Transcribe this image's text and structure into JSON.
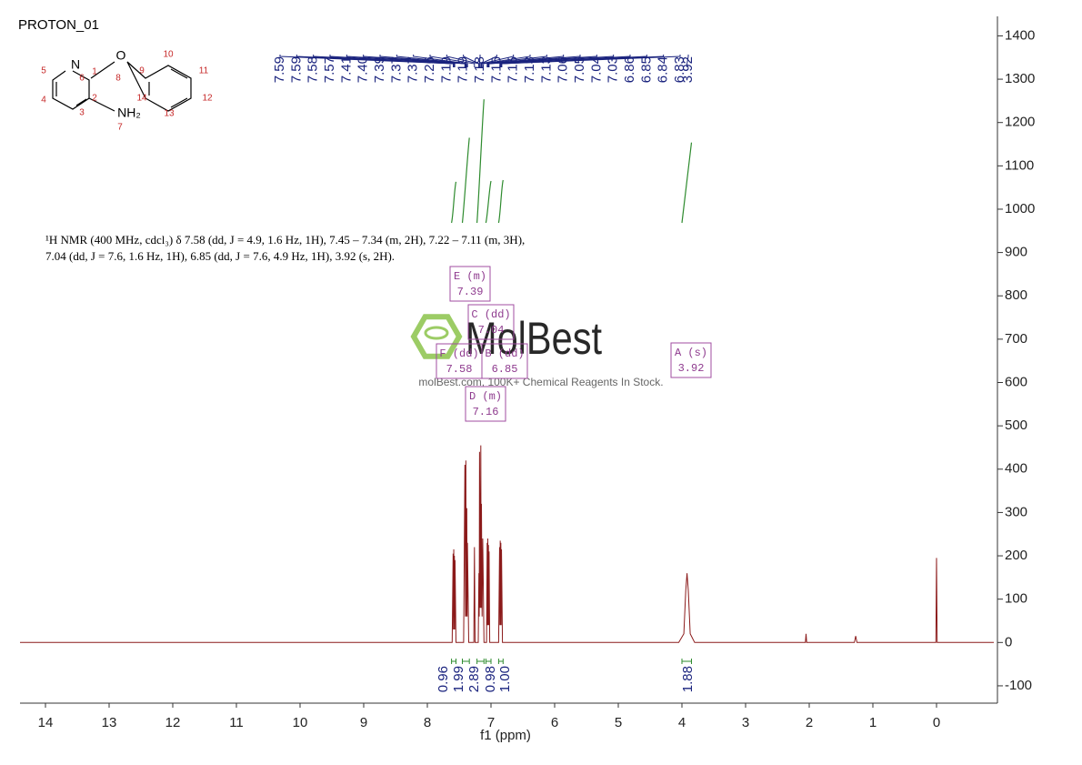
{
  "chart_data": {
    "type": "nmr",
    "title": "PROTON_01",
    "x_label": "f1 (ppm)",
    "xlim": [
      14.4,
      -0.9
    ],
    "xticks": [
      14,
      13,
      12,
      11,
      10,
      9,
      8,
      7,
      6,
      5,
      4,
      3,
      2,
      1,
      0
    ],
    "ylim": [
      -140,
      1445
    ],
    "yticks": [
      -100,
      0,
      100,
      200,
      300,
      400,
      500,
      600,
      700,
      800,
      900,
      1000,
      1100,
      1200,
      1300,
      1400
    ],
    "color": "#8b1a1a",
    "x": [
      14.4,
      7.61,
      7.595,
      7.59,
      7.585,
      7.58,
      7.575,
      7.57,
      7.565,
      7.55,
      7.43,
      7.41,
      7.4,
      7.395,
      7.39,
      7.38,
      7.375,
      7.37,
      7.35,
      7.27,
      7.26,
      7.25,
      7.2,
      7.19,
      7.185,
      7.18,
      7.17,
      7.16,
      7.155,
      7.15,
      7.14,
      7.13,
      7.11,
      7.07,
      7.06,
      7.055,
      7.05,
      7.045,
      7.04,
      7.035,
      7.03,
      7.02,
      6.88,
      6.865,
      6.86,
      6.855,
      6.85,
      6.845,
      6.84,
      6.835,
      6.82,
      4.05,
      3.97,
      3.94,
      3.92,
      3.9,
      3.87,
      3.8,
      2.06,
      2.05,
      2.04,
      1.29,
      1.27,
      1.25,
      0.01,
      0,
      -0.01,
      -0.9
    ],
    "values": [
      0,
      0,
      205,
      30,
      215,
      30,
      200,
      30,
      190,
      0,
      0,
      410,
      60,
      420,
      60,
      310,
      60,
      230,
      0,
      0,
      220,
      0,
      0,
      160,
      60,
      440,
      80,
      455,
      80,
      320,
      60,
      240,
      0,
      0,
      230,
      40,
      240,
      40,
      225,
      40,
      210,
      0,
      0,
      220,
      40,
      235,
      40,
      230,
      40,
      215,
      0,
      0,
      20,
      120,
      160,
      120,
      20,
      0,
      0,
      20,
      0,
      0,
      15,
      0,
      0,
      195,
      0,
      0
    ],
    "peak_label_color": "#1a237e",
    "peak_labels": [
      7.59,
      7.59,
      7.58,
      7.57,
      7.41,
      {
        "value": 7.4,
        "label": "7.40"
      },
      7.39,
      7.37,
      7.37,
      7.26,
      7.19,
      7.19,
      7.18,
      7.16,
      7.15,
      7.13,
      7.13,
      7.06,
      7.05,
      7.04,
      7.03,
      6.86,
      6.85,
      6.84,
      6.83,
      3.92
    ],
    "integral_color": "#2e8b2e",
    "integrals": [
      {
        "range": [
          7.62,
          7.55
        ],
        "value": 0.96
      },
      {
        "range": [
          7.45,
          7.34
        ],
        "value": 1.99
      },
      {
        "range": [
          7.22,
          7.11
        ],
        "value": 2.89
      },
      {
        "range": [
          7.08,
          7.0
        ],
        "value": 0.98
      },
      {
        "range": [
          6.88,
          6.81
        ],
        "value": {
          "value": 1.0,
          "label": "1.00"
        }
      },
      {
        "range": [
          4.0,
          3.85
        ],
        "value": 1.88
      }
    ],
    "description": [
      "¹H NMR (400 MHz, cdcl₃) δ 7.58 (dd, J = 4.9, 1.6 Hz, 1H), 7.45 – 7.34 (m, 2H), 7.22 – 7.11 (m, 3H),",
      "7.04 (dd, J = 7.6, 1.6 Hz, 1H), 6.85 (dd, J = 7.6, 4.9 Hz, 1H), 3.92 (s, 2H)."
    ],
    "multiplets": [
      {
        "name": "E (m)",
        "shift": 7.39
      },
      {
        "name": "C (dd)",
        "shift": 7.04
      },
      {
        "name": "F (dd)",
        "shift": 7.58
      },
      {
        "name": "B (dd)",
        "shift": 6.85
      },
      {
        "name": "D (m)",
        "shift": 7.16
      },
      {
        "name": "A (s)",
        "shift": 3.92
      }
    ],
    "watermark": {
      "title": "MolBest",
      "text": "molBest.com, 100K+ Chemical Reagents In Stock."
    },
    "molecule": {
      "atoms": [
        "N",
        "O",
        "NH₂",
        "1",
        "2",
        "3",
        "4",
        "5",
        "6",
        "7",
        "8",
        "9",
        "10",
        "11",
        "12",
        "13",
        "14"
      ]
    }
  }
}
